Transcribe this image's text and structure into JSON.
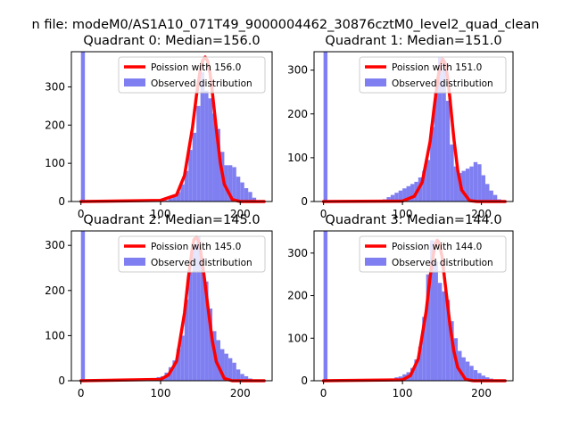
{
  "figure": {
    "suptitle": "n file: modeM0/AS1A10_071T49_9000004462_30876cztM0_level2_quad_clean"
  },
  "colors": {
    "poisson_line": "#ff0000",
    "histogram_fill": "#7f7ff2",
    "axes": "#000000",
    "background": "#ffffff"
  },
  "chart_data": [
    {
      "type": "bar",
      "quadrant": 0,
      "title": "Quadrant 0: Median=156.0",
      "median": 156.0,
      "xlabel": "",
      "ylabel": "",
      "xlim": [
        -12,
        240
      ],
      "ylim": [
        0,
        392
      ],
      "xticks": [
        0,
        100,
        200
      ],
      "yticks": [
        0,
        100,
        200,
        300
      ],
      "grid": false,
      "legend": {
        "placement": "upper-right",
        "entries": [
          "Poission with 156.0",
          "Observed distribution"
        ]
      },
      "bin_width": 5,
      "histogram": {
        "name": "Observed distribution",
        "bin_starts": [
          0,
          105,
          110,
          115,
          120,
          125,
          130,
          135,
          140,
          145,
          150,
          155,
          160,
          165,
          170,
          175,
          180,
          185,
          190,
          195,
          200,
          205,
          210,
          215,
          220
        ],
        "counts": [
          392,
          3,
          8,
          15,
          25,
          45,
          80,
          135,
          180,
          250,
          338,
          290,
          270,
          230,
          190,
          130,
          95,
          95,
          90,
          65,
          50,
          35,
          25,
          10,
          3
        ]
      },
      "poisson": {
        "name": "Poission with 156.0",
        "lambda": 156.0,
        "x": [
          0,
          100,
          120,
          130,
          140,
          145,
          150,
          153,
          156,
          159,
          162,
          165,
          170,
          175,
          180,
          190,
          200,
          230
        ],
        "y": [
          0,
          3,
          17,
          68,
          193,
          277,
          348,
          370,
          378,
          368,
          337,
          285,
          189,
          101,
          45,
          5,
          0,
          0
        ]
      }
    },
    {
      "type": "bar",
      "quadrant": 1,
      "title": "Quadrant 1: Median=151.0",
      "median": 151.0,
      "xlabel": "",
      "ylabel": "",
      "xlim": [
        -12,
        240
      ],
      "ylim": [
        0,
        342
      ],
      "xticks": [
        0,
        100,
        200
      ],
      "yticks": [
        0,
        100,
        200,
        300
      ],
      "grid": false,
      "legend": {
        "placement": "upper-right",
        "entries": [
          "Poission with 151.0",
          "Observed distribution"
        ]
      },
      "bin_width": 5,
      "histogram": {
        "name": "Observed distribution",
        "bin_starts": [
          0,
          75,
          80,
          85,
          90,
          95,
          100,
          105,
          110,
          115,
          120,
          125,
          130,
          135,
          140,
          145,
          150,
          155,
          160,
          165,
          170,
          175,
          180,
          185,
          190,
          195,
          200,
          205,
          210,
          215,
          220
        ],
        "counts": [
          342,
          5,
          10,
          15,
          20,
          25,
          30,
          35,
          40,
          45,
          55,
          70,
          95,
          170,
          250,
          330,
          300,
          230,
          130,
          80,
          65,
          70,
          75,
          80,
          90,
          85,
          60,
          40,
          25,
          15,
          5
        ]
      },
      "poisson": {
        "name": "Poission with 151.0",
        "lambda": 151.0,
        "x": [
          0,
          100,
          115,
          125,
          135,
          140,
          145,
          148,
          151,
          154,
          157,
          160,
          165,
          170,
          175,
          185,
          195,
          230
        ],
        "y": [
          0,
          1,
          12,
          44,
          137,
          213,
          283,
          312,
          325,
          316,
          285,
          237,
          145,
          71,
          26,
          2,
          0,
          0
        ]
      }
    },
    {
      "type": "bar",
      "quadrant": 2,
      "title": "Quadrant 2: Median=145.0",
      "median": 145.0,
      "xlabel": "",
      "ylabel": "",
      "xlim": [
        -12,
        240
      ],
      "ylim": [
        0,
        332
      ],
      "xticks": [
        0,
        100,
        200
      ],
      "yticks": [
        0,
        100,
        200,
        300
      ],
      "grid": false,
      "legend": {
        "placement": "upper-right",
        "entries": [
          "Poission with 145.0",
          "Observed distribution"
        ]
      },
      "bin_width": 5,
      "histogram": {
        "name": "Observed distribution",
        "bin_starts": [
          0,
          80,
          85,
          90,
          95,
          100,
          105,
          110,
          115,
          120,
          125,
          130,
          135,
          140,
          145,
          150,
          155,
          160,
          165,
          170,
          175,
          180,
          185,
          190,
          195,
          200,
          205,
          210,
          215,
          220
        ],
        "counts": [
          332,
          3,
          5,
          5,
          8,
          10,
          18,
          30,
          45,
          70,
          100,
          180,
          240,
          300,
          320,
          270,
          220,
          160,
          110,
          90,
          70,
          60,
          50,
          40,
          25,
          15,
          10,
          5,
          3,
          2
        ]
      },
      "poisson": {
        "name": "Poission with 145.0",
        "lambda": 145.0,
        "x": [
          0,
          100,
          110,
          120,
          130,
          135,
          140,
          142,
          145,
          148,
          150,
          155,
          160,
          165,
          170,
          180,
          190,
          230
        ],
        "y": [
          0,
          3,
          13,
          43,
          150,
          230,
          296,
          313,
          318,
          308,
          290,
          227,
          155,
          88,
          42,
          5,
          0,
          0
        ]
      }
    },
    {
      "type": "bar",
      "quadrant": 3,
      "title": "Quadrant 3: Median=144.0",
      "median": 144.0,
      "xlabel": "",
      "ylabel": "",
      "xlim": [
        -12,
        240
      ],
      "ylim": [
        0,
        352
      ],
      "xticks": [
        0,
        100,
        200
      ],
      "yticks": [
        0,
        100,
        200,
        300
      ],
      "grid": false,
      "legend": {
        "placement": "upper-right",
        "entries": [
          "Poission with 144.0",
          "Observed distribution"
        ]
      },
      "bin_width": 5,
      "histogram": {
        "name": "Observed distribution",
        "bin_starts": [
          0,
          75,
          80,
          85,
          90,
          95,
          100,
          105,
          110,
          115,
          120,
          125,
          130,
          135,
          140,
          145,
          150,
          155,
          160,
          165,
          170,
          175,
          180,
          185,
          190,
          195,
          200,
          205,
          210,
          215,
          220
        ],
        "counts": [
          352,
          3,
          5,
          5,
          8,
          10,
          15,
          20,
          30,
          50,
          80,
          150,
          250,
          330,
          280,
          230,
          210,
          190,
          140,
          100,
          70,
          55,
          45,
          35,
          25,
          18,
          12,
          8,
          5,
          3,
          2
        ]
      },
      "poisson": {
        "name": "Poission with 144.0",
        "lambda": 144.0,
        "x": [
          0,
          100,
          110,
          120,
          130,
          135,
          140,
          142,
          144,
          146,
          150,
          155,
          160,
          165,
          170,
          180,
          190,
          230
        ],
        "y": [
          0,
          2,
          12,
          51,
          163,
          244,
          307,
          323,
          330,
          326,
          293,
          213,
          133,
          70,
          31,
          3,
          0,
          0
        ]
      }
    }
  ]
}
